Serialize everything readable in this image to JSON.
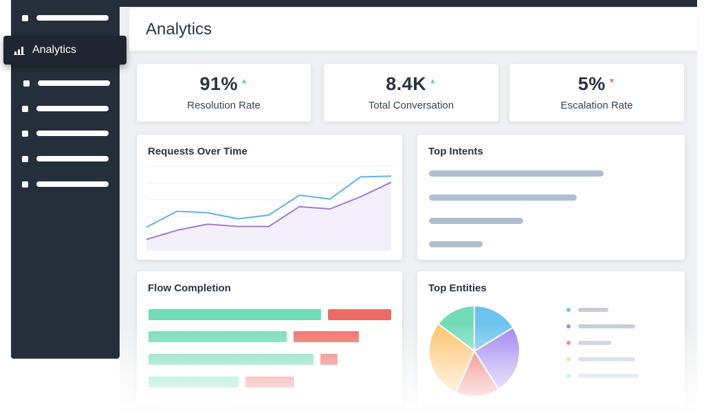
{
  "app": {
    "title": "Analytics"
  },
  "sidebar": {
    "active_item": {
      "label": "Analytics",
      "icon": "bar-chart-icon"
    },
    "placeholder_items": 6
  },
  "kpis": [
    {
      "value": "91%",
      "label": "Resolution Rate",
      "trend": "up",
      "trend_color": "#56d0a5"
    },
    {
      "value": "8.4K",
      "label": "Total Conversation",
      "trend": "up",
      "trend_color": "#56d0a5"
    },
    {
      "value": "5%",
      "label": "Escalation Rate",
      "trend": "down",
      "trend_color": "#e96b6b"
    }
  ],
  "requests_over_time": {
    "title": "Requests Over Time",
    "series": [
      {
        "color": "#5eb1e3",
        "values": [
          3.0,
          5.1,
          4.9,
          4.1,
          4.6,
          7.2,
          6.7,
          9.6,
          9.7
        ]
      },
      {
        "color": "#9c7ad9",
        "values": [
          1.4,
          2.6,
          3.4,
          3.1,
          3.1,
          5.7,
          5.4,
          7.0,
          8.9
        ]
      }
    ],
    "ylim": [
      0,
      11
    ]
  },
  "top_intents": {
    "title": "Top Intents",
    "values": [
      0.78,
      0.66,
      0.42,
      0.24
    ]
  },
  "flow_completion": {
    "title": "Flow Completion",
    "rows": [
      {
        "completed": 0.71,
        "dropped": 0.26
      },
      {
        "completed": 0.57,
        "dropped": 0.27
      },
      {
        "completed": 0.68,
        "dropped": 0.07
      },
      {
        "completed": 0.37,
        "dropped": 0.2
      }
    ]
  },
  "top_entities": {
    "title": "Top Entities",
    "slices": [
      {
        "value": 0.163,
        "color": "#6cc3ee"
      },
      {
        "value": 0.247,
        "color": "#9f85f0"
      },
      {
        "value": 0.157,
        "color": "#ee6b65"
      },
      {
        "value": 0.286,
        "color": "#fec36c"
      },
      {
        "value": 0.147,
        "color": "#72dbb7"
      }
    ],
    "legend_bars": [
      0.5,
      0.94,
      0.54,
      0.94,
      1.0
    ]
  }
}
